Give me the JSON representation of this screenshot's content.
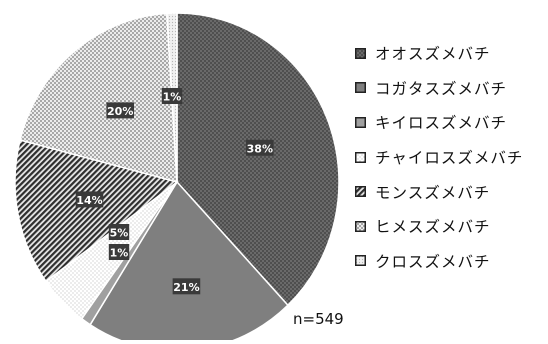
{
  "chart_data": {
    "type": "pie",
    "title": "",
    "legend_position": "right",
    "slices": [
      {
        "name": "オオスズメバチ",
        "value": 38,
        "label": "38%",
        "color": "#606060",
        "pattern": "dots-dark"
      },
      {
        "name": "コガタスズメバチ",
        "value": 21,
        "label": "21%",
        "color": "#7d7d7d",
        "pattern": "solid"
      },
      {
        "name": "キイロスズメバチ",
        "value": 1,
        "label": "1%",
        "color": "#9e9e9e",
        "pattern": "solid"
      },
      {
        "name": "チャイロスズメバチ",
        "value": 5,
        "label": "5%",
        "color": "#f5f5f5",
        "pattern": "dots-sparse"
      },
      {
        "name": "モンスズメバチ",
        "value": 14,
        "label": "14%",
        "color": "#555555",
        "pattern": "diagonal"
      },
      {
        "name": "ヒメスズメバチ",
        "value": 20,
        "label": "20%",
        "color": "#cfcfcf",
        "pattern": "checker"
      },
      {
        "name": "クロスズメバチ",
        "value": 1,
        "label": "1%",
        "color": "#e0e0e0",
        "pattern": "dots-light"
      }
    ],
    "sample_size_label": "n=549"
  }
}
